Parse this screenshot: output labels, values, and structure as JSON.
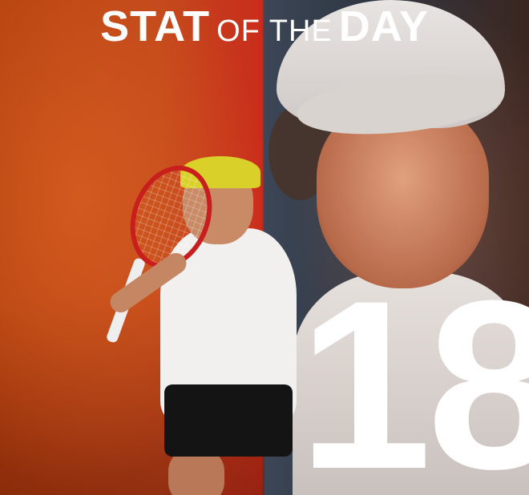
{
  "title": {
    "part1": "STAT",
    "part2": "OF THE",
    "part3": "DAY"
  },
  "stat": {
    "value": "18"
  },
  "colors": {
    "left_bg": "#c0461a",
    "right_bg": "#2e3642",
    "text": "#ffffff",
    "cap": "#d9d02a"
  }
}
